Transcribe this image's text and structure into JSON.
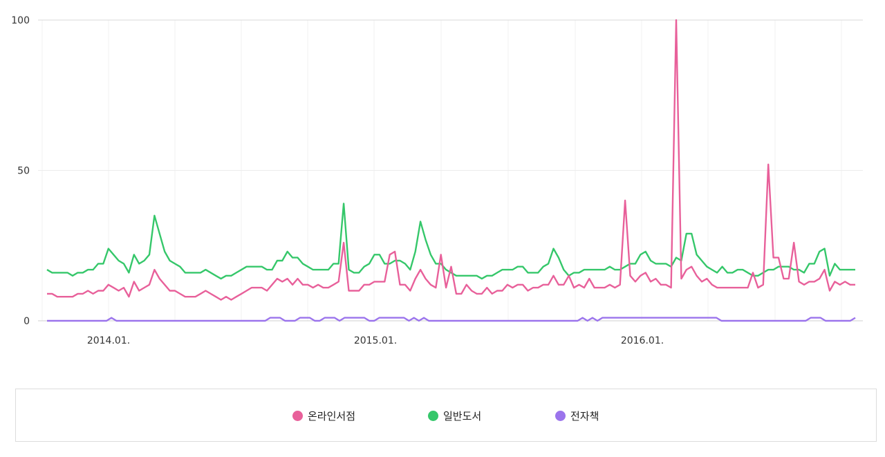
{
  "chart_data": {
    "type": "line",
    "ylim": [
      0,
      100
    ],
    "y_ticks": [
      "0",
      "50",
      "100"
    ],
    "x_tick_labels": [
      "2014.01.",
      "2015.01.",
      "2016.01."
    ],
    "grid": true,
    "legend_position": "bottom",
    "series": [
      {
        "name": "온라인서점",
        "color": "#e8609a",
        "values": [
          9,
          9,
          8,
          8,
          8,
          8,
          9,
          9,
          10,
          9,
          10,
          10,
          12,
          11,
          10,
          11,
          8,
          13,
          10,
          11,
          12,
          17,
          14,
          12,
          10,
          10,
          9,
          8,
          8,
          8,
          9,
          10,
          9,
          8,
          7,
          8,
          7,
          8,
          9,
          10,
          11,
          11,
          11,
          10,
          12,
          14,
          13,
          14,
          12,
          14,
          12,
          12,
          11,
          12,
          11,
          11,
          12,
          13,
          26,
          10,
          10,
          10,
          12,
          12,
          13,
          13,
          13,
          22,
          23,
          12,
          12,
          10,
          14,
          17,
          14,
          12,
          11,
          22,
          11,
          18,
          9,
          9,
          12,
          10,
          9,
          9,
          11,
          9,
          10,
          10,
          12,
          11,
          12,
          12,
          10,
          11,
          11,
          12,
          12,
          15,
          12,
          12,
          15,
          11,
          12,
          11,
          14,
          11,
          11,
          11,
          12,
          11,
          12,
          40,
          15,
          13,
          15,
          16,
          13,
          14,
          12,
          12,
          11,
          100,
          14,
          17,
          18,
          15,
          13,
          14,
          12,
          11,
          11,
          11,
          11,
          11,
          11,
          11,
          16,
          11,
          12,
          52,
          21,
          21,
          14,
          14,
          26,
          13,
          12,
          13,
          13,
          14,
          17,
          10,
          13,
          12,
          13,
          12,
          12
        ]
      },
      {
        "name": "일반도서",
        "color": "#35c76a",
        "values": [
          17,
          16,
          16,
          16,
          16,
          15,
          16,
          16,
          17,
          17,
          19,
          19,
          24,
          22,
          20,
          19,
          16,
          22,
          19,
          20,
          22,
          35,
          29,
          23,
          20,
          19,
          18,
          16,
          16,
          16,
          16,
          17,
          16,
          15,
          14,
          15,
          15,
          16,
          17,
          18,
          18,
          18,
          18,
          17,
          17,
          20,
          20,
          23,
          21,
          21,
          19,
          18,
          17,
          17,
          17,
          17,
          19,
          19,
          39,
          17,
          16,
          16,
          18,
          19,
          22,
          22,
          19,
          19,
          20,
          20,
          19,
          17,
          23,
          33,
          27,
          22,
          19,
          19,
          17,
          16,
          15,
          15,
          15,
          15,
          15,
          14,
          15,
          15,
          16,
          17,
          17,
          17,
          18,
          18,
          16,
          16,
          16,
          18,
          19,
          24,
          21,
          17,
          15,
          16,
          16,
          17,
          17,
          17,
          17,
          17,
          18,
          17,
          17,
          18,
          19,
          19,
          22,
          23,
          20,
          19,
          19,
          19,
          18,
          21,
          20,
          29,
          29,
          22,
          20,
          18,
          17,
          16,
          18,
          16,
          16,
          17,
          17,
          16,
          15,
          15,
          16,
          17,
          17,
          18,
          18,
          18,
          17,
          17,
          16,
          19,
          19,
          23,
          24,
          15,
          19,
          17,
          17,
          17,
          17
        ]
      },
      {
        "name": "전자책",
        "color": "#9b74ec",
        "values": [
          0,
          0,
          0,
          0,
          0,
          0,
          0,
          0,
          0,
          0,
          0,
          0,
          0,
          1,
          0,
          0,
          0,
          0,
          0,
          0,
          0,
          0,
          0,
          0,
          0,
          0,
          0,
          0,
          0,
          0,
          0,
          0,
          0,
          0,
          0,
          0,
          0,
          0,
          0,
          0,
          0,
          0,
          0,
          0,
          0,
          1,
          1,
          1,
          0,
          0,
          0,
          1,
          1,
          1,
          0,
          0,
          1,
          1,
          1,
          0,
          1,
          1,
          1,
          1,
          1,
          0,
          0,
          1,
          1,
          1,
          1,
          1,
          1,
          0,
          1,
          0,
          1,
          0,
          0,
          0,
          0,
          0,
          0,
          0,
          0,
          0,
          0,
          0,
          0,
          0,
          0,
          0,
          0,
          0,
          0,
          0,
          0,
          0,
          0,
          0,
          0,
          0,
          0,
          0,
          0,
          0,
          0,
          0,
          1,
          0,
          1,
          0,
          1,
          1,
          1,
          1,
          1,
          1,
          1,
          1,
          1,
          1,
          1,
          1,
          1,
          1,
          1,
          1,
          1,
          1,
          1,
          1,
          1,
          1,
          1,
          1,
          0,
          0,
          0,
          0,
          0,
          0,
          0,
          0,
          0,
          0,
          0,
          0,
          0,
          0,
          0,
          0,
          0,
          0,
          1,
          1,
          1,
          0,
          0,
          0,
          0,
          0,
          0,
          1
        ]
      }
    ]
  }
}
